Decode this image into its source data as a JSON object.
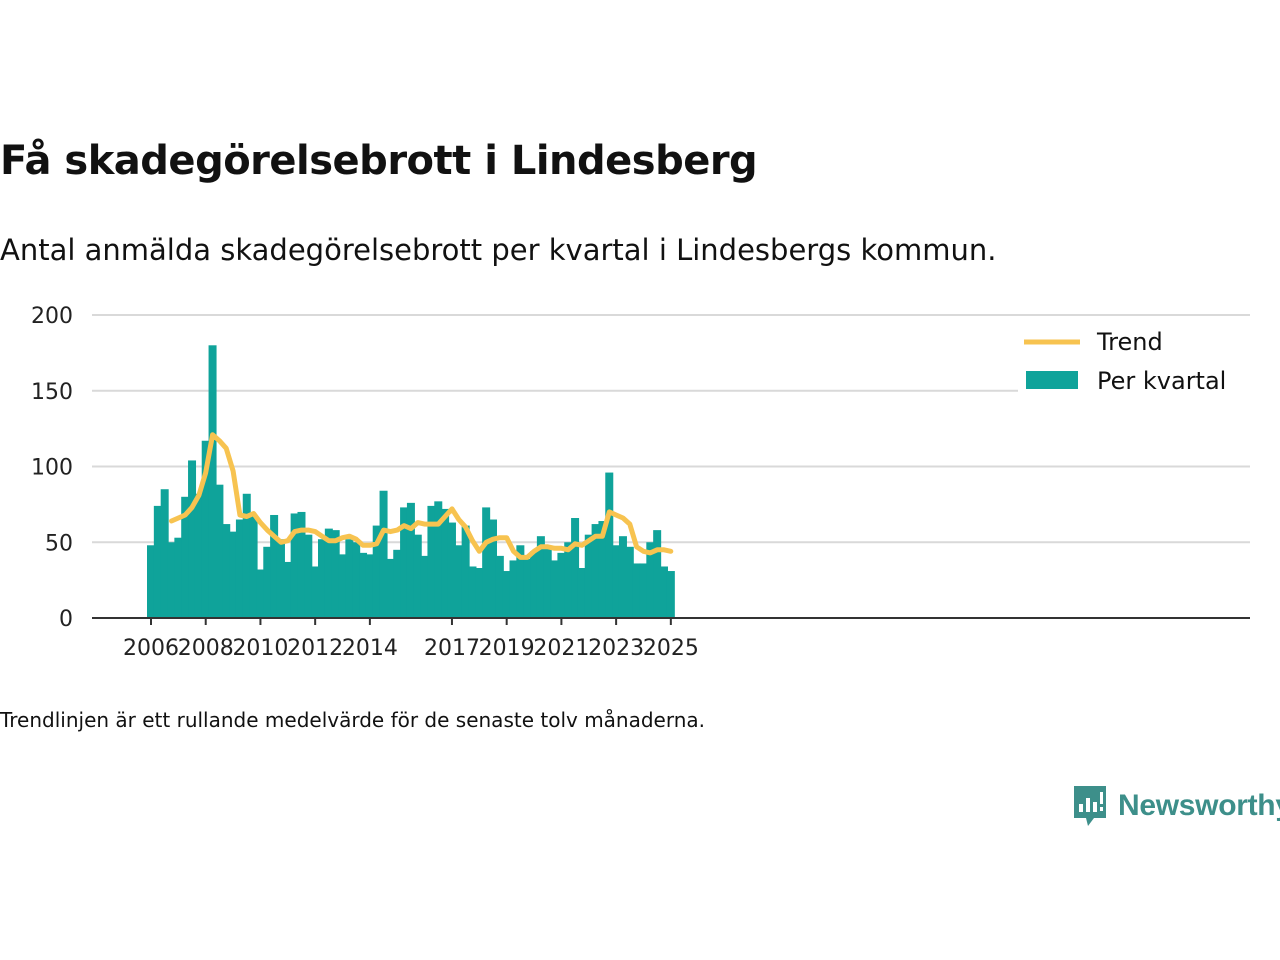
{
  "header": {
    "title": "Få skadegörelsebrott i Lindesberg",
    "subtitle": "Antal anmälda skadegörelsebrott per kvartal i Lindesbergs kommun."
  },
  "footer": {
    "note": "Trendlinjen är ett rullande medelvärde för de senaste tolv månaderna.",
    "brand": "Newsworthy"
  },
  "colors": {
    "bars": "#0fa39a",
    "trend": "#f7c350",
    "grid": "#d9d9d9",
    "axis": "#333333",
    "brand": "#3d8f8a"
  },
  "chart_data": {
    "type": "bar",
    "title": "Få skadegörelsebrott i Lindesberg",
    "subtitle": "Antal anmälda skadegörelsebrott per kvartal i Lindesbergs kommun.",
    "xlabel": "",
    "ylabel": "",
    "ylim": [
      0,
      200
    ],
    "yticks": [
      0,
      50,
      100,
      150,
      200
    ],
    "grid": true,
    "legend_position": "top-right",
    "xtick_labels": [
      {
        "label": "2006",
        "quarter_index": 0
      },
      {
        "label": "2008",
        "quarter_index": 8
      },
      {
        "label": "2010",
        "quarter_index": 16
      },
      {
        "label": "2012",
        "quarter_index": 24
      },
      {
        "label": "2014",
        "quarter_index": 32
      },
      {
        "label": "2017",
        "quarter_index": 44
      },
      {
        "label": "2019",
        "quarter_index": 52
      },
      {
        "label": "2021",
        "quarter_index": 60
      },
      {
        "label": "2023",
        "quarter_index": 68
      },
      {
        "label": "2025",
        "quarter_index": 76
      }
    ],
    "categories": [
      "2006 Q1",
      "2006 Q2",
      "2006 Q3",
      "2006 Q4",
      "2007 Q1",
      "2007 Q2",
      "2007 Q3",
      "2007 Q4",
      "2008 Q1",
      "2008 Q2",
      "2008 Q3",
      "2008 Q4",
      "2009 Q1",
      "2009 Q2",
      "2009 Q3",
      "2009 Q4",
      "2010 Q1",
      "2010 Q2",
      "2010 Q3",
      "2010 Q4",
      "2011 Q1",
      "2011 Q2",
      "2011 Q3",
      "2011 Q4",
      "2012 Q1",
      "2012 Q2",
      "2012 Q3",
      "2012 Q4",
      "2013 Q1",
      "2013 Q2",
      "2013 Q3",
      "2013 Q4",
      "2014 Q1",
      "2014 Q2",
      "2014 Q3",
      "2014 Q4",
      "2015 Q1",
      "2015 Q2",
      "2015 Q3",
      "2015 Q4",
      "2016 Q1",
      "2016 Q2",
      "2016 Q3",
      "2016 Q4",
      "2017 Q1",
      "2017 Q2",
      "2017 Q3",
      "2017 Q4",
      "2018 Q1",
      "2018 Q2",
      "2018 Q3",
      "2018 Q4",
      "2019 Q1",
      "2019 Q2",
      "2019 Q3",
      "2019 Q4",
      "2020 Q1",
      "2020 Q2",
      "2020 Q3",
      "2020 Q4",
      "2021 Q1",
      "2021 Q2",
      "2021 Q3",
      "2021 Q4",
      "2022 Q1",
      "2022 Q2",
      "2022 Q3",
      "2022 Q4",
      "2023 Q1",
      "2023 Q2",
      "2023 Q3",
      "2023 Q4",
      "2024 Q1",
      "2024 Q2",
      "2024 Q3",
      "2024 Q4",
      "2025 Q1"
    ],
    "series": [
      {
        "name": "Per kvartal",
        "type": "bar",
        "values": [
          48,
          74,
          85,
          50,
          53,
          80,
          104,
          82,
          117,
          180,
          88,
          62,
          57,
          65,
          82,
          67,
          32,
          47,
          68,
          52,
          37,
          69,
          70,
          55,
          34,
          52,
          59,
          58,
          42,
          52,
          50,
          43,
          42,
          61,
          84,
          39,
          45,
          73,
          76,
          55,
          41,
          74,
          77,
          72,
          63,
          48,
          61,
          34,
          33,
          73,
          65,
          41,
          31,
          38,
          48,
          39,
          44,
          54,
          47,
          38,
          43,
          50,
          66,
          33,
          55,
          62,
          64,
          96,
          48,
          54,
          47,
          36,
          36,
          50,
          58,
          34,
          31
        ]
      },
      {
        "name": "Trend",
        "type": "line",
        "values": [
          null,
          null,
          null,
          64,
          66,
          68,
          73,
          81,
          96,
          121,
          117,
          112,
          97,
          68,
          67,
          69,
          63,
          58,
          54,
          50,
          51,
          57,
          58,
          58,
          57,
          54,
          51,
          51,
          53,
          54,
          52,
          48,
          48,
          49,
          58,
          57,
          58,
          61,
          59,
          63,
          62,
          62,
          62,
          67,
          72,
          65,
          60,
          51,
          44,
          50,
          52,
          53,
          53,
          44,
          40,
          40,
          44,
          47,
          47,
          46,
          46,
          45,
          49,
          48,
          51,
          54,
          54,
          70,
          68,
          66,
          62,
          47,
          44,
          43,
          45,
          45,
          44
        ]
      }
    ]
  }
}
